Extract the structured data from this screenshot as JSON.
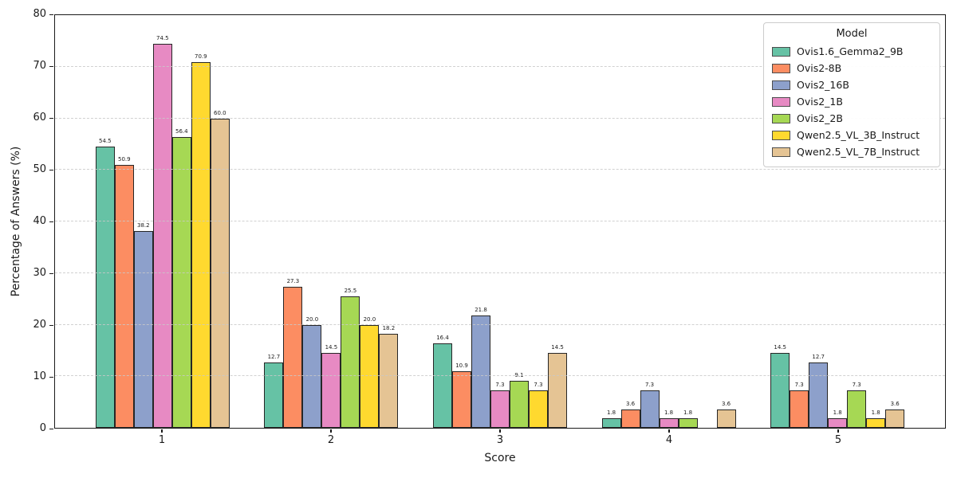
{
  "chart_data": {
    "type": "bar",
    "title": "",
    "xlabel": "Score",
    "ylabel": "Percentage of Answers (%)",
    "categories": [
      "1",
      "2",
      "3",
      "4",
      "5"
    ],
    "ylim": [
      0,
      80
    ],
    "yticks": [
      0,
      10,
      20,
      30,
      40,
      50,
      60,
      70,
      80
    ],
    "grid": "horizontal-dashed",
    "legend_title": "Model",
    "legend_position": "upper-right",
    "bar_edge_color": "#262626",
    "series": [
      {
        "name": "Ovis1.6_Gemma2_9B",
        "color": "#66c2a5",
        "values": [
          54.5,
          12.7,
          16.4,
          1.8,
          14.5
        ]
      },
      {
        "name": "Ovis2-8B",
        "color": "#fc8d62",
        "values": [
          50.9,
          27.3,
          10.9,
          3.6,
          7.3
        ]
      },
      {
        "name": "Ovis2_16B",
        "color": "#8da0cb",
        "values": [
          38.2,
          20.0,
          21.8,
          7.3,
          12.7
        ]
      },
      {
        "name": "Ovis2_1B",
        "color": "#e78ac3",
        "values": [
          74.5,
          14.5,
          7.3,
          1.8,
          1.8
        ]
      },
      {
        "name": "Ovis2_2B",
        "color": "#a6d854",
        "values": [
          56.4,
          25.5,
          9.1,
          1.8,
          7.3
        ]
      },
      {
        "name": "Qwen2.5_VL_3B_Instruct",
        "color": "#ffd92f",
        "values": [
          70.9,
          20.0,
          7.3,
          0,
          1.8
        ]
      },
      {
        "name": "Qwen2.5_VL_7B_Instruct",
        "color": "#e5c494",
        "values": [
          60.0,
          18.2,
          14.5,
          3.6,
          3.6
        ]
      }
    ]
  }
}
